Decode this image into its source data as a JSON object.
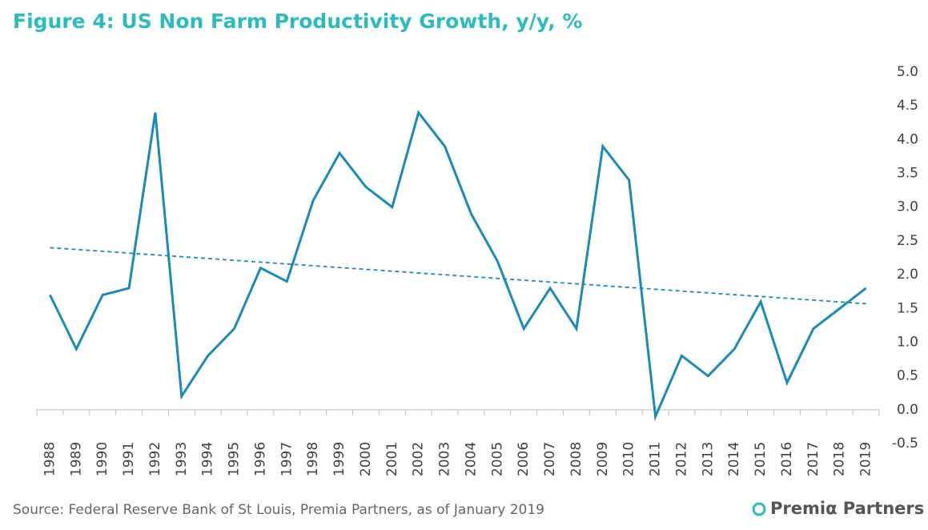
{
  "chart_data": {
    "type": "line",
    "title": "Figure 4: US Non Farm Productivity Growth, y/y, %",
    "source": "Source: Federal Reserve Bank of St Louis, Premia Partners, as of January 2019",
    "logo": "Premiα Partners",
    "categories": [
      "1988",
      "1989",
      "1990",
      "1991",
      "1992",
      "1993",
      "1994",
      "1995",
      "1996",
      "1997",
      "1998",
      "1999",
      "2000",
      "2001",
      "2002",
      "2003",
      "2004",
      "2005",
      "2006",
      "2007",
      "2008",
      "2009",
      "2010",
      "2011",
      "2012",
      "2013",
      "2014",
      "2015",
      "2016",
      "2017",
      "2018",
      "2019"
    ],
    "series": [
      {
        "color": "#1a8ab8",
        "values": [
          1.7,
          0.9,
          1.7,
          1.8,
          4.4,
          0.2,
          0.8,
          1.2,
          2.1,
          1.9,
          3.1,
          3.8,
          3.3,
          3.0,
          4.4,
          3.9,
          2.9,
          2.2,
          1.2,
          1.8,
          1.2,
          3.9,
          3.4,
          -0.1,
          0.8,
          0.5,
          0.9,
          1.6,
          0.4,
          1.2,
          1.5,
          1.8
        ]
      }
    ],
    "trendline": {
      "start": 2.4,
      "end": 1.57,
      "color": "#1a8ab8",
      "dashed": true
    },
    "ylim": [
      -0.5,
      5.0
    ],
    "yticks": [
      {
        "value": 5.0,
        "label": "5.0"
      },
      4.5,
      {
        "value": 4.0,
        "label": "4.0"
      },
      3.5,
      {
        "value": 3.0,
        "label": "3.0"
      },
      2.5,
      {
        "value": 2.0,
        "label": "2.0"
      },
      1.5,
      {
        "value": 1.0,
        "label": "1.0"
      },
      0.5,
      {
        "value": 0.0,
        "label": "0.0"
      },
      -0.5
    ],
    "grid": false
  }
}
